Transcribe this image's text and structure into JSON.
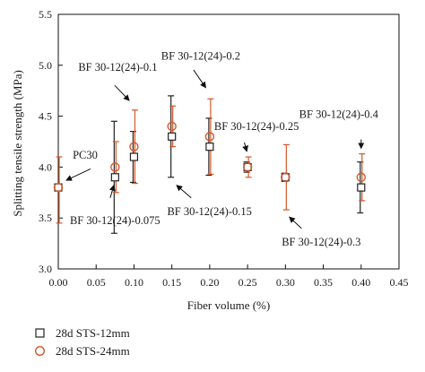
{
  "chart_data": {
    "type": "scatter",
    "xlabel": "Fiber volume (%)",
    "ylabel": "Splitting tensile strength (MPa)",
    "xlim": [
      0.0,
      0.45
    ],
    "ylim": [
      3.0,
      5.5
    ],
    "x_ticks": [
      "0.00",
      "0.05",
      "0.10",
      "0.15",
      "0.20",
      "0.25",
      "0.30",
      "0.35",
      "0.40",
      "0.45"
    ],
    "y_ticks": [
      "3.0",
      "3.5",
      "4.0",
      "4.5",
      "5.0",
      "5.5"
    ],
    "grid": false,
    "legend_position": "bottom-left",
    "series": [
      {
        "name": "28d STS-12mm",
        "marker": "square",
        "color": "#222222",
        "points": [
          {
            "x": 0.0,
            "y": 3.8,
            "err_low": 3.8,
            "err_high": 3.8
          },
          {
            "x": 0.075,
            "y": 3.9,
            "err_low": 3.35,
            "err_high": 4.45
          },
          {
            "x": 0.1,
            "y": 4.1,
            "err_low": 3.85,
            "err_high": 4.35
          },
          {
            "x": 0.15,
            "y": 4.3,
            "err_low": 3.9,
            "err_high": 4.7
          },
          {
            "x": 0.2,
            "y": 4.2,
            "err_low": 3.92,
            "err_high": 4.48
          },
          {
            "x": 0.25,
            "y": 4.0,
            "err_low": 3.95,
            "err_high": 4.05
          },
          {
            "x": 0.3,
            "y": 3.9,
            "err_low": 3.86,
            "err_high": 3.94
          },
          {
            "x": 0.4,
            "y": 3.8,
            "err_low": 3.55,
            "err_high": 4.05
          }
        ]
      },
      {
        "name": "28d STS-24mm",
        "marker": "circle",
        "color": "#d4572a",
        "points": [
          {
            "x": 0.0,
            "y": 3.8,
            "err_low": 3.45,
            "err_high": 4.1
          },
          {
            "x": 0.075,
            "y": 4.0,
            "err_low": 3.75,
            "err_high": 4.25
          },
          {
            "x": 0.1,
            "y": 4.2,
            "err_low": 3.84,
            "err_high": 4.56
          },
          {
            "x": 0.15,
            "y": 4.4,
            "err_low": 4.2,
            "err_high": 4.6
          },
          {
            "x": 0.2,
            "y": 4.3,
            "err_low": 3.93,
            "err_high": 4.67
          },
          {
            "x": 0.25,
            "y": 4.0,
            "err_low": 3.9,
            "err_high": 4.1
          },
          {
            "x": 0.3,
            "y": 3.9,
            "err_low": 3.58,
            "err_high": 4.22
          },
          {
            "x": 0.4,
            "y": 3.9,
            "err_low": 3.67,
            "err_high": 4.13
          }
        ]
      }
    ],
    "annotations": [
      {
        "text": "PC30",
        "x": 0.0,
        "y": 3.8
      },
      {
        "text": "BF 30-12(24)-0.075",
        "x": 0.075,
        "y": 3.9
      },
      {
        "text": "BF 30-12(24)-0.1",
        "x": 0.1,
        "y": 4.56
      },
      {
        "text": "BF 30-12(24)-0.15",
        "x": 0.15,
        "y": 3.9
      },
      {
        "text": "BF 30-12(24)-0.2",
        "x": 0.2,
        "y": 4.67
      },
      {
        "text": "BF 30-12(24)-0.25",
        "x": 0.25,
        "y": 4.1
      },
      {
        "text": "BF 30-12(24)-0.3",
        "x": 0.3,
        "y": 3.58
      },
      {
        "text": "BF 30-12(24)-0.4",
        "x": 0.4,
        "y": 4.13
      }
    ]
  }
}
